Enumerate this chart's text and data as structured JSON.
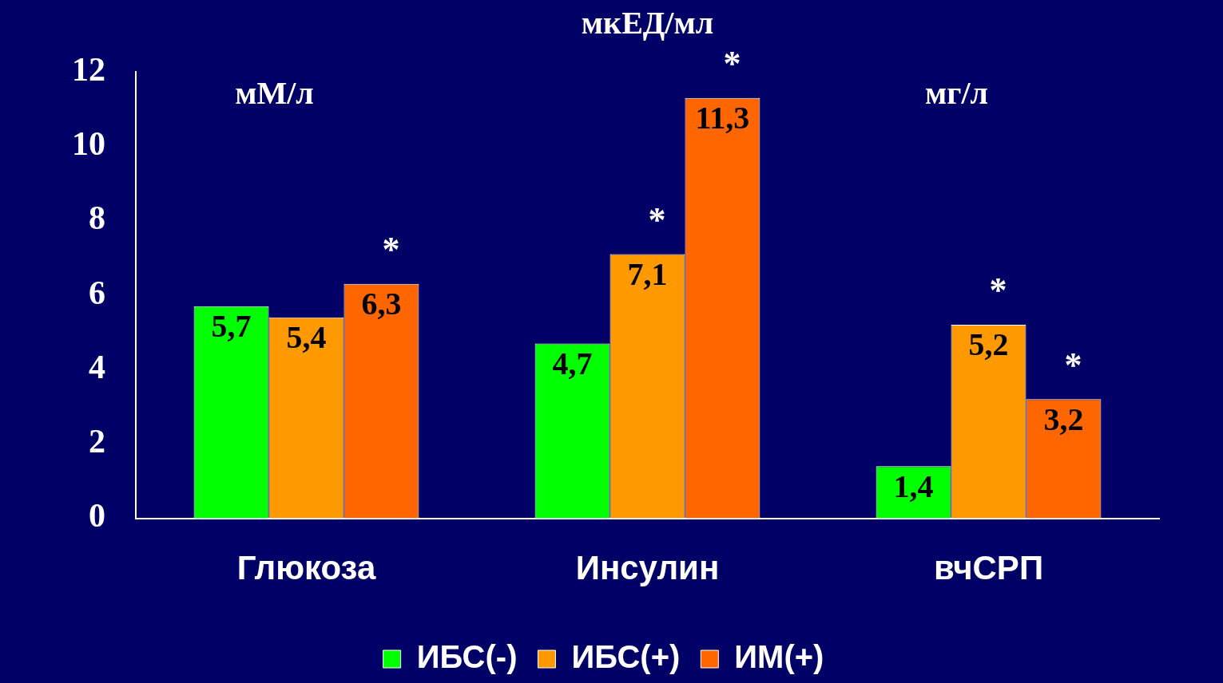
{
  "chart_data": {
    "type": "bar",
    "categories": [
      "Глюкоза",
      "Инсулин",
      "вчСРП"
    ],
    "series": [
      {
        "name": "ИБС(-)",
        "color": "#00ff00",
        "values": [
          5.7,
          4.7,
          1.4
        ],
        "value_labels": [
          "5,7",
          "4,7",
          "1,4"
        ]
      },
      {
        "name": "ИБС(+)",
        "color": "#ff9900",
        "values": [
          5.4,
          7.1,
          5.2
        ],
        "value_labels": [
          "5,4",
          "7,1",
          "5,2"
        ]
      },
      {
        "name": "ИМ(+)",
        "color": "#ff6600",
        "values": [
          6.3,
          11.3,
          3.2
        ],
        "value_labels": [
          "6,3",
          "11,3",
          "3,2"
        ]
      }
    ],
    "ylim": [
      0,
      12
    ],
    "yticks": [
      0,
      2,
      4,
      6,
      8,
      10,
      12
    ],
    "grid": false,
    "legend": "bottom",
    "annotations": [
      "мМ/л",
      "мкЕД/мл",
      "мг/л",
      "*",
      "*",
      "*",
      "*",
      "*"
    ]
  }
}
